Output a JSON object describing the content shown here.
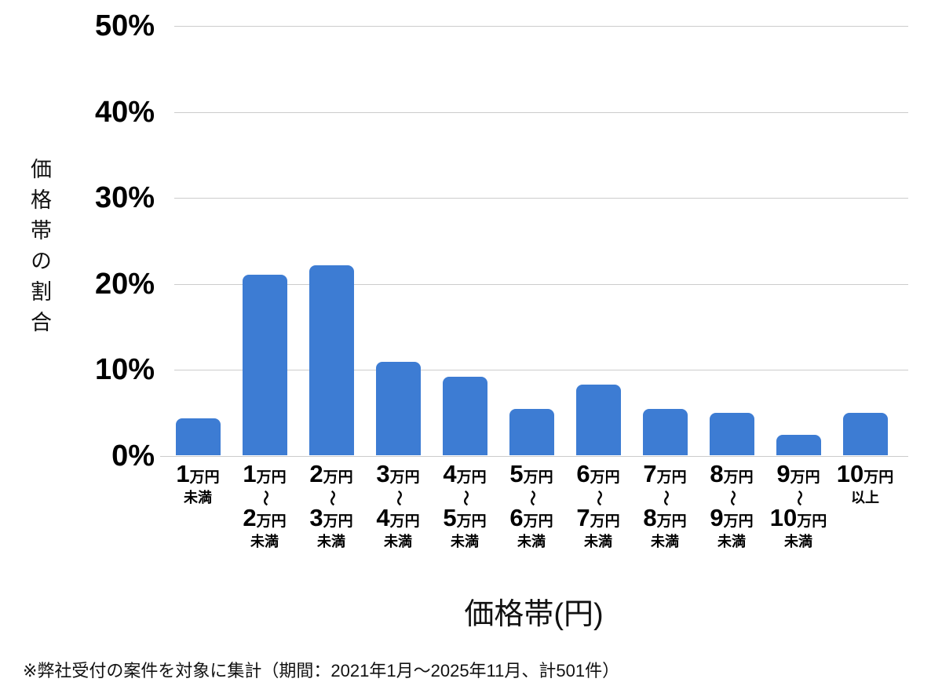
{
  "chart_data": {
    "type": "bar",
    "title": "",
    "xlabel": "価格帯(円)",
    "ylabel": "価格帯の割合",
    "ylim": [
      0,
      50
    ],
    "yticks": [
      0,
      10,
      20,
      30,
      40,
      50
    ],
    "ytick_suffix": "%",
    "grid": true,
    "legend_position": "none",
    "bar_color": "#3D7CD3",
    "grid_color": "#cccccc",
    "categories": [
      [
        "1万円",
        "未満"
      ],
      [
        "1万円",
        "〜",
        "2万円",
        "未満"
      ],
      [
        "2万円",
        "〜",
        "3万円",
        "未満"
      ],
      [
        "3万円",
        "〜",
        "4万円",
        "未満"
      ],
      [
        "4万円",
        "〜",
        "5万円",
        "未満"
      ],
      [
        "5万円",
        "〜",
        "6万円",
        "未満"
      ],
      [
        "6万円",
        "〜",
        "7万円",
        "未満"
      ],
      [
        "7万円",
        "〜",
        "8万円",
        "未満"
      ],
      [
        "8万円",
        "〜",
        "9万円",
        "未満"
      ],
      [
        "9万円",
        "〜",
        "10万円",
        "未満"
      ],
      [
        "10万円",
        "以上"
      ]
    ],
    "values": [
      4.3,
      21.0,
      22.1,
      10.9,
      9.1,
      5.4,
      8.2,
      5.4,
      4.9,
      2.4,
      4.9
    ]
  },
  "footnote": "※弊社受付の案件を対象に集計（期間：2021年1月〜2025年11月、計501件）"
}
